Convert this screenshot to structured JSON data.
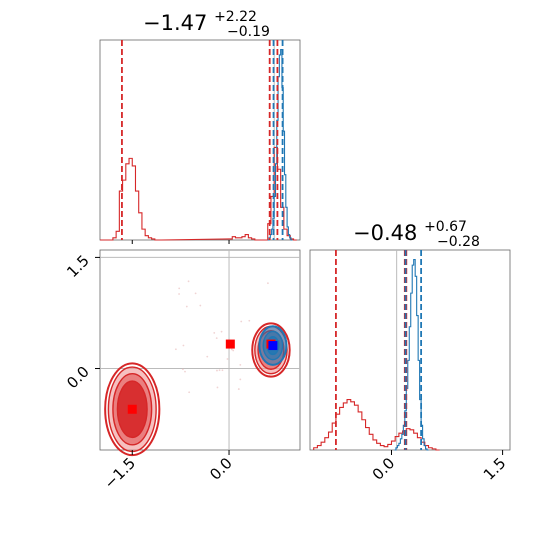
{
  "chart_data": [
    {
      "type": "histogram",
      "panel": "marginal-param-1",
      "title": {
        "median": "−1.47",
        "upper": "+2.22",
        "lower": "−0.19"
      },
      "xlim": [
        -2.0,
        1.1
      ],
      "series": [
        {
          "name": "",
          "color": "#d62728",
          "bin_width": 0.05,
          "bins": [
            [
              -2.0,
              0
            ],
            [
              -1.95,
              0
            ],
            [
              -1.9,
              0
            ],
            [
              -1.85,
              0
            ],
            [
              -1.8,
              2
            ],
            [
              -1.75,
              8
            ],
            [
              -1.7,
              45
            ],
            [
              -1.65,
              55
            ],
            [
              -1.6,
              70
            ],
            [
              -1.55,
              75
            ],
            [
              -1.5,
              68
            ],
            [
              -1.45,
              45
            ],
            [
              -1.4,
              25
            ],
            [
              -1.35,
              10
            ],
            [
              -1.3,
              4
            ],
            [
              -1.25,
              2
            ],
            [
              -1.2,
              1
            ],
            [
              -1.15,
              0
            ],
            [
              -1.1,
              0
            ],
            [
              0.0,
              1
            ],
            [
              0.05,
              3
            ],
            [
              0.1,
              2
            ],
            [
              0.15,
              2
            ],
            [
              0.2,
              3
            ],
            [
              0.25,
              5
            ],
            [
              0.3,
              2
            ],
            [
              0.35,
              1
            ],
            [
              0.4,
              0
            ],
            [
              0.45,
              0
            ],
            [
              0.5,
              0
            ],
            [
              0.55,
              0
            ],
            [
              0.6,
              15
            ],
            [
              0.65,
              40
            ],
            [
              0.7,
              85
            ],
            [
              0.75,
              65
            ],
            [
              0.8,
              30
            ],
            [
              0.85,
              10
            ],
            [
              0.9,
              4
            ],
            [
              0.95,
              1
            ],
            [
              1.0,
              0
            ]
          ]
        },
        {
          "name": "",
          "color": "#1f77b4",
          "bin_width": 0.02,
          "bins": [
            [
              0.6,
              0
            ],
            [
              0.62,
              2
            ],
            [
              0.64,
              5
            ],
            [
              0.66,
              10
            ],
            [
              0.68,
              20
            ],
            [
              0.7,
              40
            ],
            [
              0.72,
              70
            ],
            [
              0.74,
              110
            ],
            [
              0.76,
              150
            ],
            [
              0.78,
              170
            ],
            [
              0.8,
              175
            ],
            [
              0.82,
              140
            ],
            [
              0.84,
              100
            ],
            [
              0.86,
              60
            ],
            [
              0.88,
              30
            ],
            [
              0.9,
              12
            ],
            [
              0.92,
              5
            ],
            [
              0.94,
              2
            ],
            [
              0.96,
              0
            ]
          ]
        }
      ],
      "dashed_lines": [
        {
          "x": -1.66,
          "color": "#d62728"
        },
        {
          "x": 0.63,
          "color": "#d62728"
        },
        {
          "x": 0.75,
          "color": "#d62728"
        },
        {
          "x": 0.69,
          "color": "#1f77b4"
        },
        {
          "x": 0.83,
          "color": "#1f77b4"
        }
      ],
      "truth_line": {
        "x": 0.7
      }
    },
    {
      "type": "histogram",
      "panel": "marginal-param-2",
      "title": {
        "median": "−0.48",
        "upper": "+0.67",
        "lower": "−0.28"
      },
      "xlim": [
        -1.1,
        1.6
      ],
      "xticks": [
        "0.0",
        "1.5"
      ],
      "tick_values": [
        0.0,
        1.5
      ],
      "series": [
        {
          "name": "",
          "color": "#d62728",
          "bin_width": 0.05,
          "bins": [
            [
              -1.05,
              2
            ],
            [
              -1.0,
              4
            ],
            [
              -0.95,
              7
            ],
            [
              -0.9,
              11
            ],
            [
              -0.85,
              16
            ],
            [
              -0.8,
              24
            ],
            [
              -0.75,
              32
            ],
            [
              -0.7,
              38
            ],
            [
              -0.65,
              42
            ],
            [
              -0.6,
              45
            ],
            [
              -0.55,
              43
            ],
            [
              -0.5,
              40
            ],
            [
              -0.45,
              34
            ],
            [
              -0.4,
              27
            ],
            [
              -0.35,
              20
            ],
            [
              -0.3,
              14
            ],
            [
              -0.25,
              9
            ],
            [
              -0.2,
              6
            ],
            [
              -0.15,
              4
            ],
            [
              -0.1,
              3
            ],
            [
              -0.05,
              5
            ],
            [
              0.0,
              8
            ],
            [
              0.05,
              12
            ],
            [
              0.1,
              15
            ],
            [
              0.15,
              17
            ],
            [
              0.2,
              19
            ],
            [
              0.25,
              18
            ],
            [
              0.3,
              15
            ],
            [
              0.35,
              11
            ],
            [
              0.4,
              7
            ],
            [
              0.45,
              4
            ],
            [
              0.5,
              2
            ],
            [
              0.55,
              1
            ],
            [
              0.6,
              0
            ]
          ]
        },
        {
          "name": "",
          "color": "#1f77b4",
          "bin_width": 0.02,
          "bins": [
            [
              0.04,
              0
            ],
            [
              0.06,
              2
            ],
            [
              0.08,
              4
            ],
            [
              0.1,
              6
            ],
            [
              0.12,
              10
            ],
            [
              0.14,
              14
            ],
            [
              0.16,
              22
            ],
            [
              0.18,
              35
            ],
            [
              0.2,
              55
            ],
            [
              0.22,
              80
            ],
            [
              0.24,
              110
            ],
            [
              0.26,
              140
            ],
            [
              0.28,
              165
            ],
            [
              0.3,
              170
            ],
            [
              0.32,
              155
            ],
            [
              0.34,
              120
            ],
            [
              0.36,
              80
            ],
            [
              0.38,
              45
            ],
            [
              0.4,
              22
            ],
            [
              0.42,
              10
            ],
            [
              0.44,
              4
            ],
            [
              0.46,
              1
            ],
            [
              0.48,
              0
            ]
          ]
        }
      ],
      "dashed_lines": [
        {
          "x": -0.75,
          "color": "#d62728"
        },
        {
          "x": 0.18,
          "color": "#d62728"
        },
        {
          "x": 0.2,
          "color": "#d62728"
        },
        {
          "x": 0.19,
          "color": "#1f77b4"
        },
        {
          "x": 0.4,
          "color": "#1f77b4"
        }
      ],
      "truth_line": {
        "x": 0.07
      }
    },
    {
      "type": "scatter",
      "panel": "joint-2d",
      "xlim": [
        -2.0,
        1.1
      ],
      "ylim": [
        -1.1,
        1.6
      ],
      "xticks": [
        "−1.5",
        "0.0"
      ],
      "x_tick_values": [
        -1.5,
        0.0
      ],
      "yticks": [
        "0.0",
        "1.5"
      ],
      "y_tick_values": [
        0.0,
        1.5
      ],
      "truth_lines": {
        "x": 0.0,
        "y": 0.0,
        "y2": 1.5
      },
      "points": [
        {
          "x": -1.5,
          "y": -0.55,
          "color": "#ff0000"
        },
        {
          "x": 0.02,
          "y": 0.33,
          "color": "#ff0000"
        },
        {
          "x": 0.65,
          "y": 0.33,
          "color": "#ff0000"
        },
        {
          "x": 0.68,
          "y": 0.31,
          "color": "#0000ff"
        }
      ],
      "contours": [
        {
          "group": "red-bottom",
          "cx": -1.5,
          "cy": -0.55,
          "color": "#d62728",
          "levels": [
            {
              "rx": 0.42,
              "ry": 0.62
            },
            {
              "rx": 0.37,
              "ry": 0.57
            },
            {
              "rx": 0.3,
              "ry": 0.48
            },
            {
              "rx": 0.23,
              "ry": 0.38
            }
          ]
        },
        {
          "group": "red-cluster",
          "cx": 0.65,
          "cy": 0.25,
          "color": "#d62728",
          "levels": [
            {
              "rx": 0.29,
              "ry": 0.36
            },
            {
              "rx": 0.25,
              "ry": 0.32
            },
            {
              "rx": 0.2,
              "ry": 0.26
            }
          ]
        },
        {
          "group": "blue-cluster",
          "cx": 0.68,
          "cy": 0.31,
          "color": "#1f77b4",
          "levels": [
            {
              "rx": 0.21,
              "ry": 0.26
            },
            {
              "rx": 0.15,
              "ry": 0.19
            },
            {
              "rx": 0.09,
              "ry": 0.12
            }
          ]
        }
      ]
    }
  ]
}
